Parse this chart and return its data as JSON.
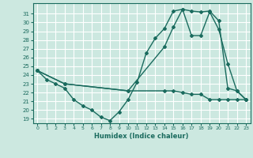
{
  "xlabel": "Humidex (Indice chaleur)",
  "bg_color": "#cce8e0",
  "grid_color": "#ffffff",
  "line_color": "#1a6b5e",
  "xlim": [
    -0.5,
    23.5
  ],
  "ylim": [
    18.5,
    32.2
  ],
  "xticks": [
    0,
    1,
    2,
    3,
    4,
    5,
    6,
    7,
    8,
    9,
    10,
    11,
    12,
    13,
    14,
    15,
    16,
    17,
    18,
    19,
    20,
    21,
    22,
    23
  ],
  "yticks": [
    19,
    20,
    21,
    22,
    23,
    24,
    25,
    26,
    27,
    28,
    29,
    30,
    31
  ],
  "line1": [
    [
      0,
      24.5
    ],
    [
      1,
      23.5
    ],
    [
      2,
      23
    ],
    [
      3,
      22.5
    ],
    [
      4,
      21.2
    ],
    [
      5,
      20.5
    ],
    [
      6,
      20.0
    ],
    [
      7,
      19.2
    ],
    [
      8,
      18.8
    ],
    [
      9,
      19.8
    ],
    [
      10,
      21.2
    ],
    [
      11,
      23.2
    ],
    [
      12,
      26.5
    ],
    [
      13,
      28.2
    ],
    [
      14,
      29.3
    ],
    [
      15,
      31.3
    ],
    [
      16,
      31.5
    ],
    [
      17,
      31.3
    ],
    [
      18,
      31.2
    ],
    [
      19,
      31.3
    ],
    [
      20,
      30.2
    ],
    [
      21,
      22.5
    ],
    [
      22,
      22.2
    ],
    [
      23,
      21.2
    ]
  ],
  "line2": [
    [
      0,
      24.5
    ],
    [
      3,
      23.0
    ],
    [
      10,
      22.2
    ],
    [
      14,
      27.2
    ],
    [
      15,
      29.5
    ],
    [
      16,
      31.5
    ],
    [
      17,
      28.5
    ],
    [
      18,
      28.5
    ],
    [
      19,
      31.2
    ],
    [
      20,
      29.2
    ],
    [
      21,
      25.3
    ],
    [
      22,
      22.2
    ],
    [
      23,
      21.2
    ]
  ],
  "line3": [
    [
      0,
      24.5
    ],
    [
      3,
      23.0
    ],
    [
      10,
      22.2
    ],
    [
      14,
      22.2
    ],
    [
      15,
      22.2
    ],
    [
      16,
      22.0
    ],
    [
      17,
      21.8
    ],
    [
      18,
      21.8
    ],
    [
      19,
      21.2
    ],
    [
      20,
      21.2
    ],
    [
      21,
      21.2
    ],
    [
      22,
      21.2
    ],
    [
      23,
      21.2
    ]
  ]
}
